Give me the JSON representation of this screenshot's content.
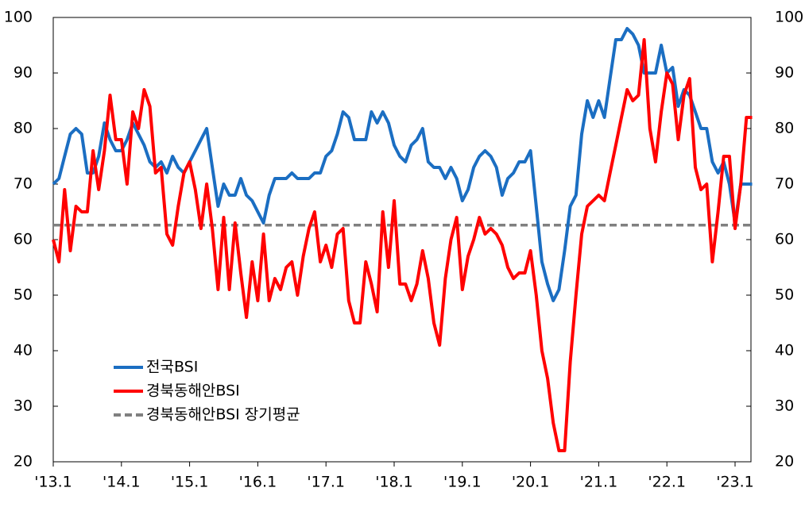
{
  "chart_data": {
    "type": "line",
    "categories": [
      "'13.1",
      null,
      null,
      null,
      null,
      null,
      null,
      null,
      null,
      null,
      null,
      null,
      "'14.1",
      null,
      null,
      null,
      null,
      null,
      null,
      null,
      null,
      null,
      null,
      null,
      "'15.1",
      null,
      null,
      null,
      null,
      null,
      null,
      null,
      null,
      null,
      null,
      null,
      "'16.1",
      null,
      null,
      null,
      null,
      null,
      null,
      null,
      null,
      null,
      null,
      null,
      "'17.1",
      null,
      null,
      null,
      null,
      null,
      null,
      null,
      null,
      null,
      null,
      null,
      "'18.1",
      null,
      null,
      null,
      null,
      null,
      null,
      null,
      null,
      null,
      null,
      null,
      "'19.1",
      null,
      null,
      null,
      null,
      null,
      null,
      null,
      null,
      null,
      null,
      null,
      "'20.1",
      null,
      null,
      null,
      null,
      null,
      null,
      null,
      null,
      null,
      null,
      null,
      "'21.1",
      null,
      null,
      null,
      null,
      null,
      null,
      null,
      null,
      null,
      null,
      null,
      "'22.1",
      null,
      null,
      null,
      null,
      null,
      null,
      null,
      null,
      null,
      null,
      null,
      "'23.1",
      null,
      null,
      null
    ],
    "series": [
      {
        "name": "전국BSI",
        "color": "#1b6ec2",
        "values": [
          70,
          71,
          75,
          79,
          80,
          79,
          72,
          72,
          75,
          81,
          78,
          76,
          76,
          78,
          81,
          79,
          77,
          74,
          73,
          74,
          72,
          75,
          73,
          72,
          74,
          76,
          78,
          80,
          73,
          66,
          70,
          68,
          68,
          71,
          68,
          67,
          65,
          63,
          68,
          71,
          71,
          71,
          72,
          71,
          71,
          71,
          72,
          72,
          75,
          76,
          79,
          83,
          82,
          78,
          78,
          78,
          83,
          81,
          83,
          81,
          77,
          75,
          74,
          77,
          78,
          80,
          74,
          73,
          73,
          71,
          73,
          71,
          67,
          69,
          73,
          75,
          76,
          75,
          73,
          68,
          71,
          72,
          74,
          74,
          76,
          66,
          56,
          52,
          49,
          51,
          58,
          66,
          68,
          79,
          85,
          82,
          85,
          82,
          89,
          96,
          96,
          98,
          97,
          95,
          90,
          90,
          90,
          95,
          90,
          91,
          84,
          87,
          86,
          83,
          80,
          80,
          74,
          72,
          74,
          70,
          63,
          70,
          70,
          70
        ]
      },
      {
        "name": "경북동해안BSI",
        "color": "#ff0000",
        "values": [
          60,
          56,
          69,
          58,
          66,
          65,
          65,
          76,
          69,
          76,
          86,
          78,
          78,
          70,
          83,
          80,
          87,
          84,
          72,
          73,
          61,
          59,
          66,
          72,
          74,
          69,
          62,
          70,
          62,
          51,
          64,
          51,
          63,
          54,
          46,
          56,
          49,
          61,
          49,
          53,
          51,
          55,
          56,
          50,
          57,
          62,
          65,
          56,
          59,
          55,
          61,
          62,
          49,
          45,
          45,
          56,
          52,
          47,
          65,
          55,
          67,
          52,
          52,
          49,
          52,
          58,
          53,
          45,
          41,
          53,
          60,
          64,
          51,
          57,
          60,
          64,
          61,
          62,
          61,
          59,
          55,
          53,
          54,
          54,
          58,
          50,
          40,
          35,
          27,
          22,
          22,
          38,
          50,
          61,
          66,
          67,
          68,
          67,
          72,
          77,
          82,
          87,
          85,
          86,
          96,
          80,
          74,
          83,
          90,
          88,
          78,
          86,
          89,
          73,
          69,
          70,
          56,
          65,
          75,
          75,
          62,
          70,
          82,
          82
        ]
      }
    ],
    "reference_lines": [
      {
        "name": "경북동해안BSI 장기평균",
        "value": 62.6,
        "color": "#808080",
        "dash": true
      }
    ],
    "ylim": [
      20,
      100
    ],
    "yticks": [
      20,
      30,
      40,
      50,
      60,
      70,
      80,
      90,
      100
    ],
    "y2lim": [
      20,
      100
    ],
    "y2ticks": [
      20,
      30,
      40,
      50,
      60,
      70,
      80,
      90,
      100
    ],
    "legend": "lower left"
  }
}
